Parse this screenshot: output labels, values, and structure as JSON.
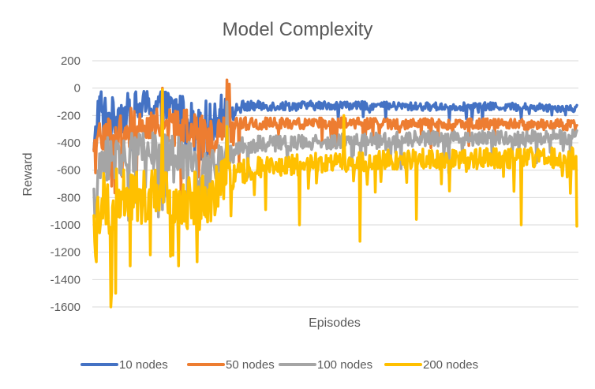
{
  "chart_data": {
    "type": "line",
    "title": "Model Complexity",
    "xlabel": "Episodes",
    "ylabel": "Reward",
    "ylim": [
      -1600,
      200
    ],
    "yticks": [
      "200",
      "0",
      "-200",
      "-400",
      "-600",
      "-800",
      "-1000",
      "-1200",
      "-1400",
      "-1600"
    ],
    "grid": true,
    "legend_position": "bottom",
    "episode_count": 600,
    "series": [
      {
        "name": "10 nodes",
        "color": "#4472C4",
        "anchor_episodes": [
          0,
          5,
          10,
          20,
          30,
          40,
          60,
          80,
          100,
          120,
          140,
          150,
          160,
          170,
          180,
          200,
          250,
          300,
          350,
          400,
          450,
          500,
          550,
          599
        ],
        "anchor_mean": [
          -500,
          -150,
          -120,
          -250,
          -180,
          -200,
          -130,
          -130,
          -150,
          -220,
          -230,
          -260,
          -140,
          -200,
          -140,
          -130,
          -130,
          -125,
          -130,
          -135,
          -135,
          -135,
          -140,
          -145
        ],
        "noise": [
          120,
          140,
          150,
          170,
          160,
          160,
          120,
          120,
          130,
          140,
          140,
          150,
          80,
          60,
          50,
          35,
          35,
          30,
          30,
          30,
          30,
          30,
          30,
          30
        ],
        "spikes": [
          [
            12,
            -380
          ],
          [
            38,
            -360
          ],
          [
            85,
            -330
          ],
          [
            125,
            -480
          ],
          [
            133,
            -520
          ],
          [
            158,
            -50
          ],
          [
            163,
            -80
          ]
        ]
      },
      {
        "name": "50 nodes",
        "color": "#ED7D31",
        "anchor_episodes": [
          0,
          10,
          20,
          40,
          60,
          80,
          100,
          120,
          140,
          160,
          170,
          200,
          250,
          300,
          350,
          400,
          450,
          500,
          550,
          599
        ],
        "anchor_mean": [
          -550,
          -300,
          -350,
          -300,
          -260,
          -260,
          -280,
          -300,
          -380,
          -300,
          -270,
          -260,
          -260,
          -255,
          -260,
          -260,
          -265,
          -260,
          -265,
          -270
        ],
        "noise": [
          160,
          150,
          180,
          150,
          120,
          110,
          140,
          150,
          160,
          110,
          60,
          45,
          40,
          40,
          40,
          40,
          40,
          40,
          40,
          40
        ],
        "spikes": [
          [
            2,
            -620
          ],
          [
            85,
            0
          ],
          [
            100,
            -420
          ],
          [
            130,
            -650
          ],
          [
            165,
            60
          ],
          [
            168,
            30
          ],
          [
            180,
            -550
          ]
        ]
      },
      {
        "name": "100 nodes",
        "color": "#A5A5A5",
        "anchor_episodes": [
          0,
          10,
          20,
          40,
          60,
          80,
          100,
          120,
          140,
          160,
          180,
          200,
          250,
          300,
          350,
          400,
          450,
          500,
          550,
          599
        ],
        "anchor_mean": [
          -850,
          -550,
          -500,
          -480,
          -470,
          -450,
          -500,
          -560,
          -650,
          -500,
          -430,
          -410,
          -400,
          -390,
          -380,
          -370,
          -370,
          -365,
          -360,
          -360
        ],
        "noise": [
          160,
          160,
          170,
          150,
          140,
          130,
          160,
          160,
          170,
          130,
          70,
          60,
          55,
          55,
          55,
          55,
          55,
          55,
          55,
          55
        ],
        "spikes": [
          [
            2,
            -940
          ],
          [
            130,
            -1000
          ],
          [
            165,
            -100
          ],
          [
            240,
            -560
          ],
          [
            320,
            -570
          ],
          [
            440,
            -620
          ]
        ]
      },
      {
        "name": "200 nodes",
        "color": "#FFC000",
        "anchor_episodes": [
          0,
          10,
          20,
          40,
          60,
          80,
          100,
          120,
          140,
          160,
          180,
          200,
          250,
          300,
          350,
          400,
          450,
          500,
          550,
          599
        ],
        "anchor_mean": [
          -1100,
          -800,
          -850,
          -750,
          -800,
          -700,
          -780,
          -820,
          -850,
          -680,
          -620,
          -580,
          -560,
          -540,
          -530,
          -520,
          -520,
          -510,
          -510,
          -505
        ],
        "noise": [
          200,
          230,
          250,
          220,
          200,
          190,
          210,
          220,
          220,
          170,
          90,
          80,
          80,
          75,
          75,
          75,
          75,
          75,
          75,
          75
        ],
        "spikes": [
          [
            3,
            -1270
          ],
          [
            22,
            -1490
          ],
          [
            45,
            -1300
          ],
          [
            70,
            -1220
          ],
          [
            85,
            -10
          ],
          [
            95,
            -1230
          ],
          [
            128,
            -1270
          ],
          [
            165,
            -280
          ],
          [
            255,
            -1000
          ],
          [
            310,
            -200
          ],
          [
            330,
            -1120
          ],
          [
            400,
            -960
          ],
          [
            530,
            -1000
          ],
          [
            600,
            -1010
          ]
        ]
      }
    ]
  }
}
